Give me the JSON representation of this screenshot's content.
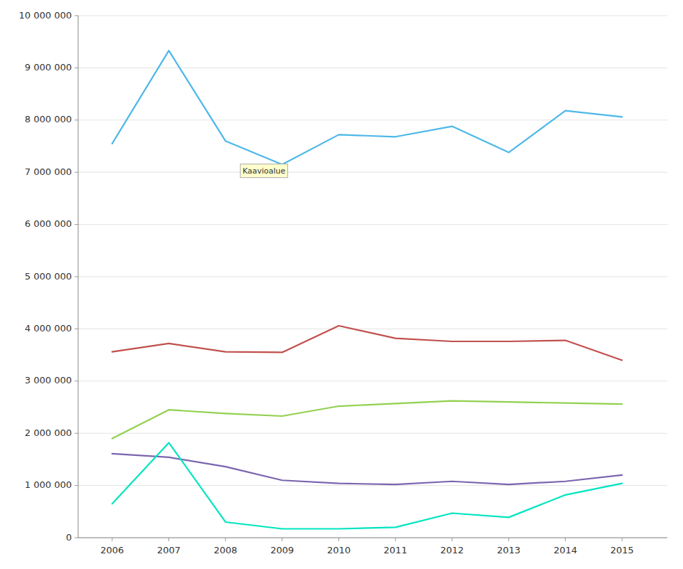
{
  "chart_data": {
    "type": "line",
    "x": [
      2006,
      2007,
      2008,
      2009,
      2010,
      2011,
      2012,
      2013,
      2014,
      2015
    ],
    "series": [
      {
        "color": "#4DB8E8",
        "values": [
          7550000,
          9330000,
          7600000,
          7150000,
          7720000,
          7680000,
          7880000,
          7380000,
          8180000,
          8060000
        ]
      },
      {
        "color": "#C0504D",
        "values": [
          3560000,
          3720000,
          3560000,
          3550000,
          4060000,
          3820000,
          3760000,
          3760000,
          3780000,
          3400000
        ]
      },
      {
        "color": "#92D050",
        "values": [
          1900000,
          2450000,
          2380000,
          2330000,
          2520000,
          2570000,
          2620000,
          2600000,
          2580000,
          2560000
        ]
      },
      {
        "color": "#7B64B0",
        "values": [
          1610000,
          1540000,
          1360000,
          1100000,
          1040000,
          1020000,
          1080000,
          1020000,
          1080000,
          1200000
        ]
      },
      {
        "color": "#00E5C0",
        "values": [
          650000,
          1820000,
          300000,
          170000,
          170000,
          200000,
          470000,
          390000,
          820000,
          1040000
        ]
      }
    ],
    "xlim": [
      2005.4,
      2015.8
    ],
    "xticks": [
      2006,
      2007,
      2008,
      2009,
      2010,
      2011,
      2012,
      2013,
      2014,
      2015
    ],
    "ylim": [
      0,
      10000000
    ],
    "yticks": [
      0,
      {
        "value": 1000000,
        "label": "1 000 000"
      },
      {
        "value": 2000000,
        "label": "2 000 000"
      },
      {
        "value": 3000000,
        "label": "3 000 000"
      },
      {
        "value": 4000000,
        "label": "4 000 000"
      },
      {
        "value": 5000000,
        "label": "5 000 000"
      },
      {
        "value": 6000000,
        "label": "6 000 000"
      },
      {
        "value": 7000000,
        "label": "7 000 000"
      },
      {
        "value": 8000000,
        "label": "8 000 000"
      },
      {
        "value": 9000000,
        "label": "9 000 000"
      },
      {
        "value": 10000000,
        "label": "10 000 000"
      }
    ],
    "grid": true,
    "annotations": [
      {
        "text": "Kaavioalue",
        "x": 2008.3,
        "y": 6980000
      }
    ]
  }
}
